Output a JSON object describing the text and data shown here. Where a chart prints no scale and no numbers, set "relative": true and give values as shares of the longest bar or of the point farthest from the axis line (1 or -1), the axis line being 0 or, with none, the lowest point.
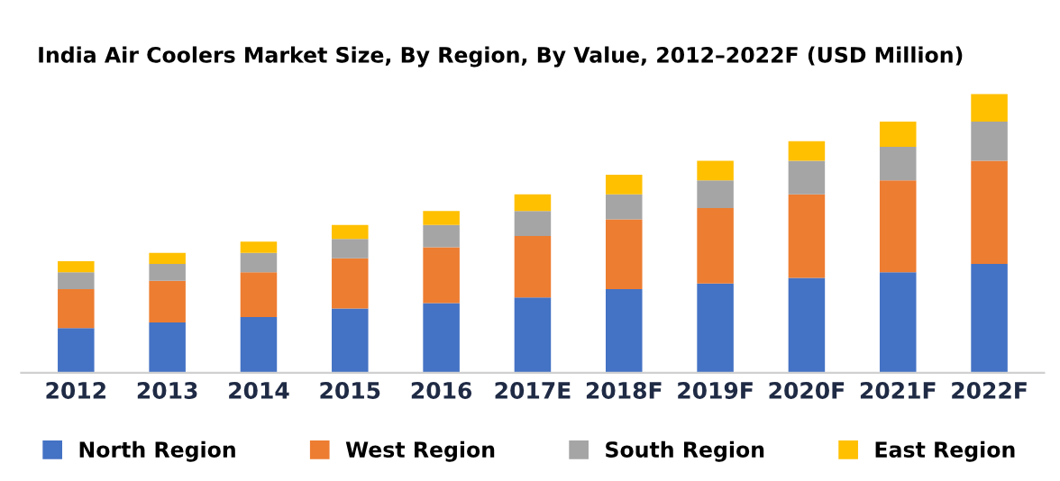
{
  "chart_data": {
    "type": "bar",
    "stacked": true,
    "relative": true,
    "title": "India Air Coolers Market Size, By Region, By Value, 2012–2022F (USD Million)",
    "categories": [
      "2012",
      "2013",
      "2014",
      "2015",
      "2016",
      "2017E",
      "2018F",
      "2019F",
      "2020F",
      "2021F",
      "2022F"
    ],
    "series": [
      {
        "name": "North Region",
        "color": "#4472c4",
        "values": [
          0.16,
          0.18,
          0.2,
          0.23,
          0.25,
          0.27,
          0.3,
          0.32,
          0.34,
          0.36,
          0.39
        ]
      },
      {
        "name": "West Region",
        "color": "#ed7d31",
        "values": [
          0.14,
          0.15,
          0.16,
          0.18,
          0.2,
          0.22,
          0.25,
          0.27,
          0.3,
          0.33,
          0.37
        ]
      },
      {
        "name": "South Region",
        "color": "#a5a5a5",
        "values": [
          0.06,
          0.06,
          0.07,
          0.07,
          0.08,
          0.09,
          0.09,
          0.1,
          0.12,
          0.12,
          0.14
        ]
      },
      {
        "name": "East Region",
        "color": "#ffc000",
        "values": [
          0.04,
          0.04,
          0.04,
          0.05,
          0.05,
          0.06,
          0.07,
          0.07,
          0.07,
          0.09,
          0.1
        ]
      }
    ],
    "legend": "bottom",
    "grid": false
  }
}
